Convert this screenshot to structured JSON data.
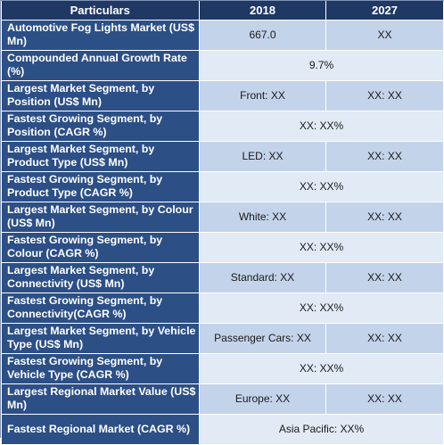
{
  "header": {
    "col1": "Particulars",
    "col2": "2018",
    "col3": "2027"
  },
  "rows": [
    {
      "label": "Automotive Fog Lights Market (US$ Mn)",
      "v2018": "667.0",
      "v2027": "XX"
    },
    {
      "label": "Compounded Annual Growth Rate (%)",
      "span": "9.7%"
    },
    {
      "label": "Largest Market Segment, by Position (US$ Mn)",
      "v2018": "Front: XX",
      "v2027": "XX: XX"
    },
    {
      "label": "Fastest Growing Segment, by Position  (CAGR %)",
      "span": "XX: XX%"
    },
    {
      "label": "Largest Market Segment, by Product Type (US$ Mn)",
      "v2018": "LED: XX",
      "v2027": "XX: XX"
    },
    {
      "label": "Fastest Growing Segment, by Product Type  (CAGR %)",
      "span": "XX: XX%"
    },
    {
      "label": "Largest Market Segment, by Colour (US$ Mn)",
      "v2018": "White: XX",
      "v2027": "XX: XX"
    },
    {
      "label": "Fastest Growing Segment, by Colour (CAGR %)",
      "span": "XX: XX%"
    },
    {
      "label": "Largest Market Segment, by Connectivity (US$ Mn)",
      "v2018": "Standard: XX",
      "v2027": "XX: XX"
    },
    {
      "label": "Fastest Growing Segment, by Connectivity(CAGR %)",
      "span": "XX: XX%"
    },
    {
      "label": "Largest Market Segment, by Vehicle Type (US$ Mn)",
      "v2018": "Passenger Cars: XX",
      "v2027": "XX: XX"
    },
    {
      "label": "Fastest Growing Segment, by Vehicle Type (CAGR %)",
      "span": "XX: XX%"
    },
    {
      "label": "Largest Regional Market Value (US$ Mn)",
      "v2018": "Europe: XX",
      "v2027": "XX: XX"
    },
    {
      "label": "Fastest Regional Market (CAGR %)",
      "span": "Asia Pacific: XX%"
    }
  ]
}
